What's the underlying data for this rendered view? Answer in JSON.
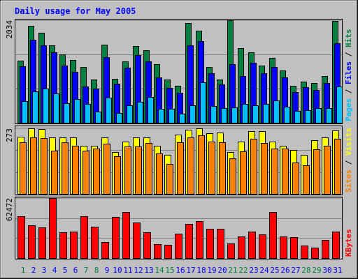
{
  "chart_data": [
    {
      "type": "bar",
      "title": "Daily usage for May 2005",
      "ylim": [
        0,
        2034
      ],
      "yticks": [
        2034
      ],
      "series": [
        {
          "name": "Hits",
          "color": "#008040",
          "values": [
            1226,
            1923,
            1783,
            1532,
            1351,
            1240,
            1101,
            864,
            1546,
            878,
            1212,
            1518,
            1435,
            1156,
            864,
            738,
            1978,
            1825,
            1101,
            864,
            2034,
            1477,
            1393,
            1128,
            1282,
            1031,
            738,
            822,
            794,
            933,
            2020
          ]
        },
        {
          "name": "Files",
          "color": "#0000ff",
          "values": [
            1115,
            1644,
            1532,
            1393,
            1128,
            1017,
            724,
            683,
            1296,
            780,
            1087,
            1337,
            1212,
            906,
            697,
            599,
            1532,
            1616,
            989,
            766,
            1156,
            933,
            1184,
            989,
            1101,
            906,
            613,
            711,
            655,
            794,
            1574
          ]
        },
        {
          "name": "Pages",
          "color": "#00c0ff",
          "values": [
            432,
            627,
            683,
            585,
            390,
            474,
            376,
            223,
            502,
            195,
            348,
            418,
            515,
            279,
            279,
            181,
            348,
            808,
            334,
            293,
            306,
            376,
            348,
            376,
            446,
            320,
            237,
            251,
            293,
            293,
            724
          ]
        }
      ]
    },
    {
      "type": "bar",
      "ylim": [
        0,
        273
      ],
      "yticks": [
        273
      ],
      "series": [
        {
          "name": "Visits",
          "color": "#ffff00",
          "values": [
            238,
            273,
            270,
            235,
            235,
            235,
            200,
            200,
            235,
            173,
            217,
            235,
            235,
            200,
            164,
            247,
            267,
            273,
            252,
            255,
            173,
            217,
            261,
            261,
            217,
            200,
            182,
            164,
            223,
            235,
            264
          ]
        },
        {
          "name": "Sites",
          "color": "#ff8000",
          "values": [
            214,
            235,
            232,
            179,
            214,
            200,
            179,
            188,
            208,
            156,
            197,
            197,
            211,
            167,
            126,
            214,
            235,
            244,
            217,
            214,
            147,
            176,
            229,
            211,
            188,
            188,
            132,
            120,
            185,
            200,
            229
          ]
        }
      ]
    },
    {
      "type": "bar",
      "ylim": [
        0,
        62472
      ],
      "yticks": [
        62472
      ],
      "categories": [
        "1",
        "2",
        "3",
        "4",
        "5",
        "6",
        "7",
        "8",
        "9",
        "10",
        "11",
        "12",
        "13",
        "14",
        "15",
        "16",
        "17",
        "18",
        "19",
        "20",
        "21",
        "22",
        "23",
        "24",
        "25",
        "26",
        "27",
        "28",
        "29",
        "30",
        "31"
      ],
      "category_colors": [
        "#008040",
        "#0000ff",
        "#0000ff",
        "#0000ff",
        "#0000ff",
        "#0000ff",
        "#008040",
        "#008040",
        "#0000ff",
        "#0000ff",
        "#0000ff",
        "#0000ff",
        "#0000ff",
        "#008040",
        "#008040",
        "#0000ff",
        "#0000ff",
        "#0000ff",
        "#0000ff",
        "#0000ff",
        "#008040",
        "#008040",
        "#0000ff",
        "#0000ff",
        "#0000ff",
        "#0000ff",
        "#0000ff",
        "#008040",
        "#008040",
        "#0000ff",
        "#0000ff"
      ],
      "series": [
        {
          "name": "KBytes",
          "color": "#ff0000",
          "values": [
            43363,
            33809,
            31604,
            62472,
            27194,
            27929,
            43363,
            32339,
            16904,
            42628,
            47773,
            36748,
            27194,
            14699,
            13965,
            25724,
            35279,
            38218,
            30869,
            30869,
            15434,
            22784,
            27929,
            24989,
            47773,
            22784,
            22049,
            13230,
            11025,
            19109,
            27929
          ]
        }
      ]
    }
  ]
}
